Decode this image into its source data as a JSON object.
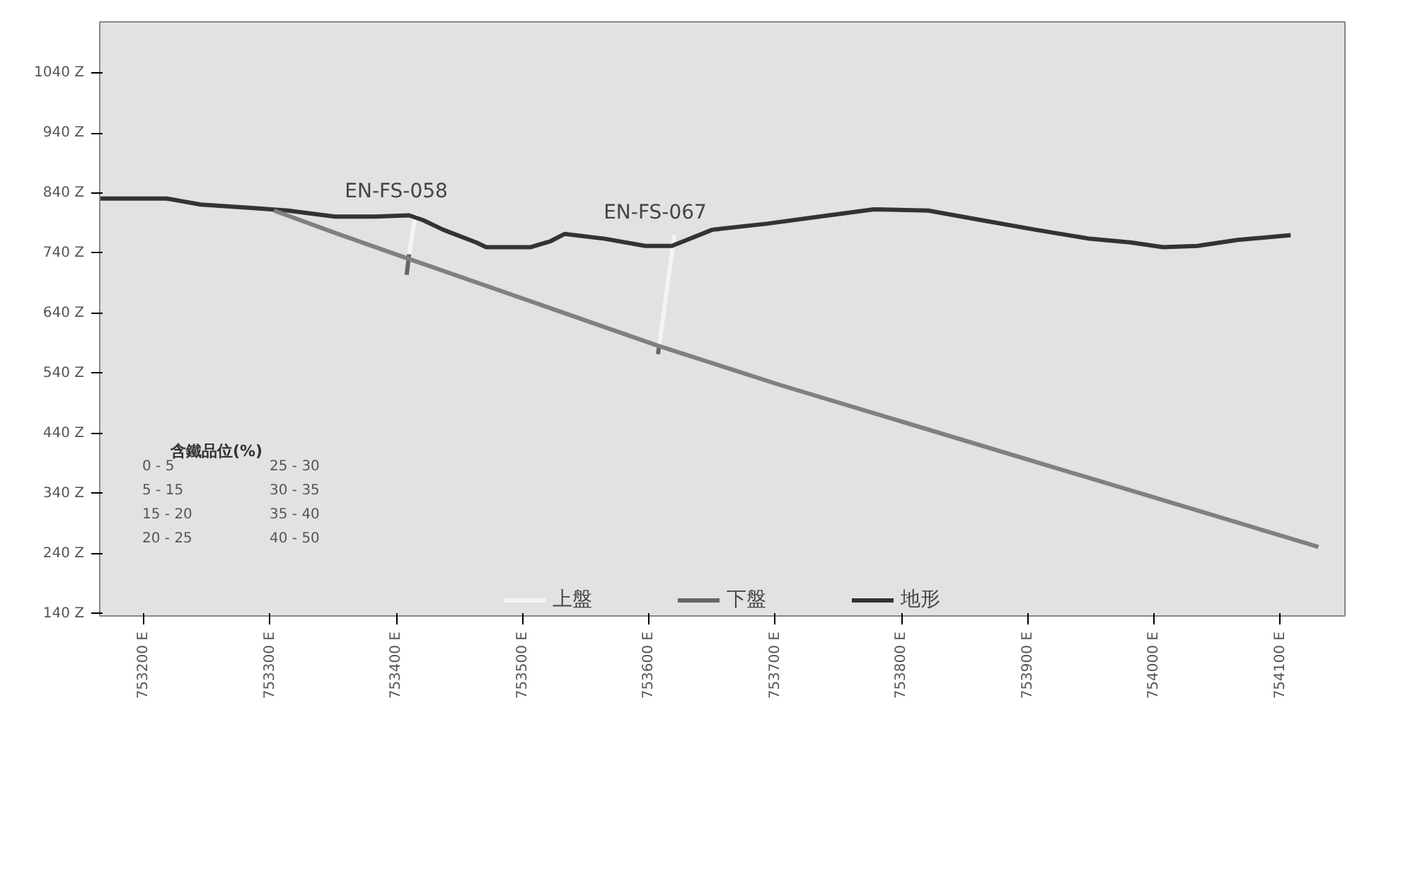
{
  "chart_data": {
    "type": "line",
    "xlim": [
      753165,
      754151
    ],
    "ylim": [
      136,
      1125
    ],
    "xticks": [
      {
        "value": 753200,
        "label": "753200 E"
      },
      {
        "value": 753300,
        "label": "753300 E"
      },
      {
        "value": 753400,
        "label": "753400 E"
      },
      {
        "value": 753500,
        "label": "753500 E"
      },
      {
        "value": 753600,
        "label": "753600 E"
      },
      {
        "value": 753700,
        "label": "753700 E"
      },
      {
        "value": 753800,
        "label": "753800 E"
      },
      {
        "value": 753900,
        "label": "753900 E"
      },
      {
        "value": 754000,
        "label": "754000 E"
      },
      {
        "value": 754100,
        "label": "754100 E"
      }
    ],
    "yticks": [
      {
        "value": 140,
        "label": "140 Z"
      },
      {
        "value": 240,
        "label": "240 Z"
      },
      {
        "value": 340,
        "label": "340 Z"
      },
      {
        "value": 440,
        "label": "440 Z"
      },
      {
        "value": 540,
        "label": "540 Z"
      },
      {
        "value": 640,
        "label": "640 Z"
      },
      {
        "value": 740,
        "label": "740 Z"
      },
      {
        "value": 840,
        "label": "840 Z"
      },
      {
        "value": 940,
        "label": "940 Z"
      },
      {
        "value": 1040,
        "label": "1040 Z"
      }
    ],
    "grid": false,
    "legend": "bottom",
    "series": [
      {
        "name": "上盤",
        "color": "#f4f4f4",
        "x": [
          753415,
          753410,
          753412,
          753620,
          753608
        ],
        "values": [
          805,
          738,
          null,
          770,
          586
        ]
      },
      {
        "name": "下盤",
        "color": "#666666",
        "x": [
          753410,
          753408,
          753409,
          753608,
          753607
        ],
        "values": [
          738,
          704,
          null,
          586,
          572
        ]
      },
      {
        "name": "地形",
        "color": "#333333",
        "x": [
          753165,
          753218,
          753245,
          753287,
          753314,
          753351,
          753383,
          753410,
          753421,
          753437,
          753463,
          753471,
          753506,
          753522,
          753533,
          753565,
          753597,
          753618,
          753650,
          753693,
          753735,
          753778,
          753821,
          753863,
          753906,
          753949,
          753981,
          754007,
          754034,
          754066,
          754108
        ],
        "values": [
          831,
          831,
          821,
          815,
          811,
          801,
          801,
          803,
          795,
          779,
          758,
          750,
          750,
          760,
          772,
          764,
          752,
          752,
          779,
          789,
          801,
          813,
          811,
          795,
          779,
          764,
          758,
          750,
          752,
          762,
          770
        ]
      },
      {
        "color": "#808080",
        "x": [
          753303,
          753351,
          753405,
          753607,
          753703,
          754130
        ],
        "values": [
          811,
          774,
          734,
          586,
          521,
          251
        ]
      }
    ],
    "annotations": [
      {
        "text": "EN-FS-058",
        "x": 753415,
        "y": 805
      },
      {
        "text": "EN-FS-067",
        "x": 753620,
        "y": 770
      },
      "含鐵品位(%)",
      "0 - 5",
      "5 - 15",
      "15 - 20",
      "20 - 25",
      "25 - 30",
      "30 - 35",
      "35 - 40",
      "40 - 50"
    ]
  }
}
